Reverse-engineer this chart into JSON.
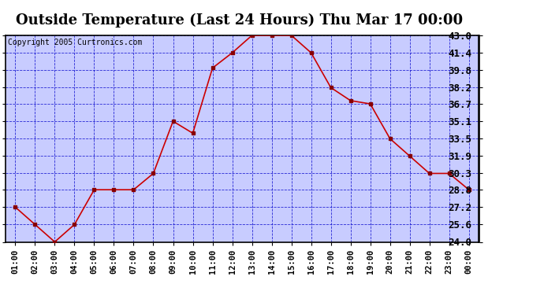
{
  "title": "Outside Temperature (Last 24 Hours) Thu Mar 17 00:00",
  "copyright": "Copyright 2005 Curtronics.com",
  "x_labels": [
    "01:00",
    "02:00",
    "03:00",
    "04:00",
    "05:00",
    "06:00",
    "07:00",
    "08:00",
    "09:00",
    "10:00",
    "11:00",
    "12:00",
    "13:00",
    "14:00",
    "15:00",
    "16:00",
    "17:00",
    "18:00",
    "19:00",
    "20:00",
    "21:00",
    "22:00",
    "23:00",
    "00:00"
  ],
  "y_values": [
    27.2,
    25.6,
    24.0,
    25.6,
    28.8,
    28.8,
    28.8,
    30.3,
    35.1,
    34.0,
    40.0,
    41.4,
    43.0,
    43.0,
    43.0,
    41.4,
    38.2,
    37.0,
    36.7,
    33.5,
    31.9,
    30.3,
    30.3,
    28.8
  ],
  "y_ticks": [
    24.0,
    25.6,
    27.2,
    28.8,
    30.3,
    31.9,
    33.5,
    35.1,
    36.7,
    38.2,
    39.8,
    41.4,
    43.0
  ],
  "y_min": 24.0,
  "y_max": 43.0,
  "line_color": "#cc0000",
  "marker_color": "#880000",
  "plot_bg_color": "#c8ccff",
  "grid_color": "#0000cc",
  "title_fontsize": 13,
  "copyright_fontsize": 7,
  "tick_fontsize": 7.5,
  "y_tick_fontsize": 9
}
